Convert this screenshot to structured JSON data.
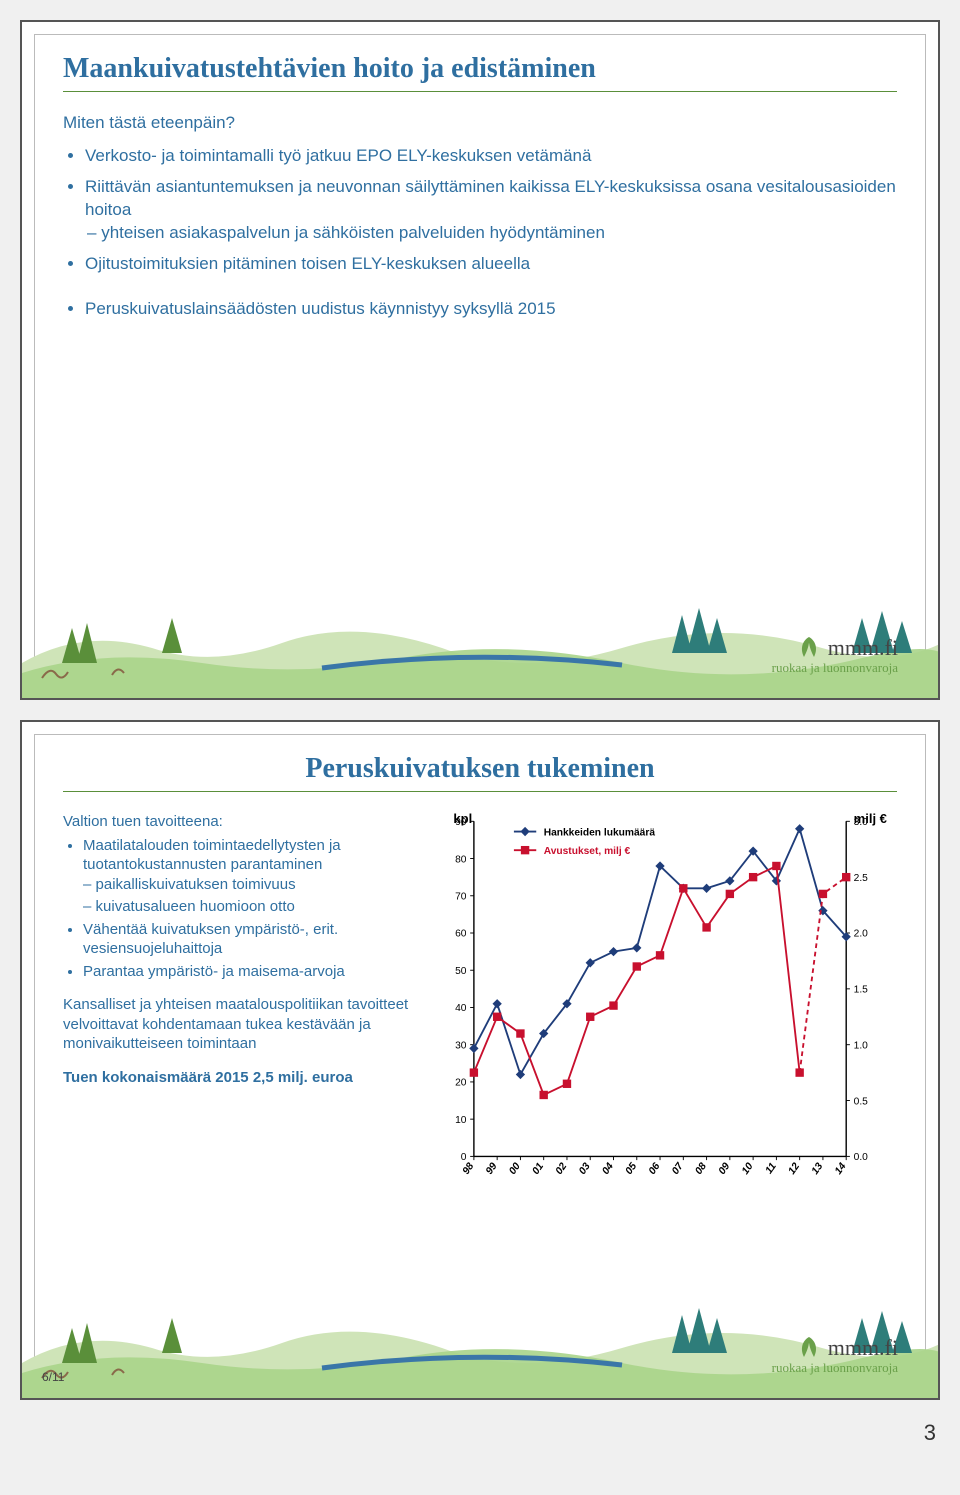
{
  "slide1": {
    "title": "Maankuivatustehtävien hoito ja edistäminen",
    "bullets": [
      "Miten tästä eteenpäin?",
      "Verkosto- ja toimintamalli työ jatkuu EPO ELY-keskuksen vetämänä",
      "Riittävän asiantuntemuksen ja neuvonnan säilyttäminen kaikissa ELY-keskuksissa osana vesitalousasioiden hoitoa"
    ],
    "sub1": "yhteisen asiakaspalvelun ja sähköisten palveluiden hyödyntäminen",
    "bullets2": [
      "Ojitustoimituksien pitäminen toisen ELY-keskuksen alueella",
      "Peruskuivatuslainsäädösten uudistus käynnistyy syksyllä 2015"
    ]
  },
  "slide2": {
    "title": "Peruskuivatuksen tukeminen",
    "left": {
      "intro": "Valtion tuen tavoitteena:",
      "b1": "Maatilatalouden toimintaedellytysten ja tuotantokustannusten parantaminen",
      "b1a": "paikalliskuivatuksen toimivuus",
      "b1b": "kuivatusalueen huomioon otto",
      "b2": "Vähentää kuivatuksen ympäristö-, erit. vesiensuojeluhaittoja",
      "b3": "Parantaa ympäristö- ja maisema-arvoja",
      "para": "Kansalliset ja yhteisen maatalouspolitiikan tavoitteet velvoittavat kohdentamaan tukea kestävään ja monivaikutteiseen toimintaan",
      "total": "Tuen kokonaismäärä 2015  2,5 milj. euroa"
    },
    "pageno_left": "6/11"
  },
  "brand": {
    "name": "mmm.fi",
    "tagline": "ruokaa ja luonnonvaroja"
  },
  "chart": {
    "type": "dual-axis line",
    "ylabel_left": "kpl",
    "ylabel_right": "milj €",
    "legend": {
      "series1": "Hankkeiden lukumäärä",
      "series2": "Avustukset, milj €"
    },
    "x_labels": [
      "98",
      "99",
      "00",
      "01",
      "02",
      "03",
      "04",
      "05",
      "06",
      "07",
      "08",
      "09",
      "10",
      "11",
      "12",
      "13",
      "14"
    ],
    "y_left": {
      "min": 0,
      "max": 90,
      "step": 10
    },
    "y_right": {
      "min": 0.0,
      "max": 3.0,
      "step": 0.5
    },
    "series1_values": [
      29,
      41,
      22,
      33,
      41,
      52,
      55,
      56,
      78,
      72,
      72,
      74,
      82,
      74,
      88,
      66,
      59
    ],
    "series2_values": [
      0.75,
      1.25,
      1.1,
      0.55,
      0.65,
      1.25,
      1.35,
      1.7,
      1.8,
      2.4,
      2.05,
      2.35,
      2.5,
      2.6,
      0.75,
      2.35,
      2.5
    ],
    "colors": {
      "series1_line": "#1f3d7a",
      "series1_marker": "#1f3d7a",
      "series2_line": "#c8102e",
      "series2_marker": "#c8102e",
      "axis": "#000000",
      "grid_bg": "#ffffff",
      "text": "#000000"
    },
    "fonts": {
      "axis_label": 12,
      "legend": 11,
      "tick": 11,
      "corner_label": 14
    }
  },
  "decor": {
    "green1": "#5a8f3a",
    "green2": "#7fb05a",
    "teal": "#2e7d7a",
    "blue": "#3a76a8",
    "brown": "#8a6a4a"
  },
  "page_number_bottom": "3"
}
